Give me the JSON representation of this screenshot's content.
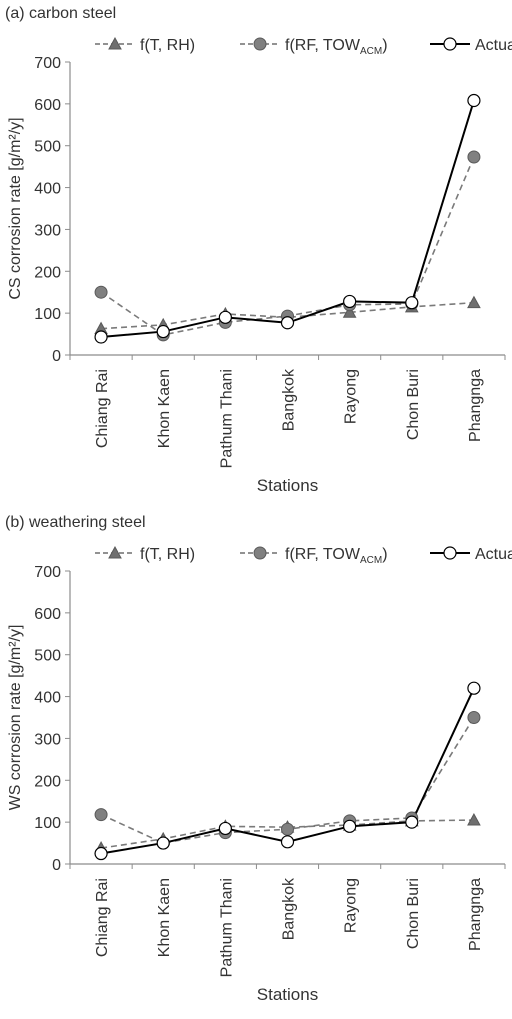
{
  "chart_data": [
    {
      "type": "line",
      "title": "(a) carbon steel",
      "xlabel": "Stations",
      "ylabel": "CS corrosion rate [g/m²/y]",
      "ylim": [
        0,
        700
      ],
      "yticks": [
        0,
        100,
        200,
        300,
        400,
        500,
        600,
        700
      ],
      "categories": [
        "Chiang Rai",
        "Khon Kaen",
        "Pathum Thani",
        "Bangkok",
        "Rayong",
        "Chon Buri",
        "Phangnga"
      ],
      "grid": false,
      "legend_position": "top",
      "series": [
        {
          "name": "f(T, RH)",
          "legend_main": "f(T, RH)",
          "legend_sub": "",
          "legend_tail": "",
          "marker": "triangle",
          "line": "dashed",
          "color": "#7f7f7f",
          "values": [
            63,
            72,
            98,
            90,
            102,
            115,
            125
          ]
        },
        {
          "name": "f(RF, TOWACM)",
          "legend_main": "f(RF, TOW",
          "legend_sub": "ACM",
          "legend_tail": ")",
          "marker": "circle-filled",
          "line": "dashed",
          "color": "#7f7f7f",
          "values": [
            150,
            48,
            78,
            93,
            120,
            122,
            473
          ]
        },
        {
          "name": "Actual",
          "legend_main": "Actual",
          "legend_sub": "",
          "legend_tail": "",
          "marker": "circle-open",
          "line": "solid",
          "color": "#000000",
          "values": [
            43,
            56,
            90,
            77,
            128,
            125,
            608
          ]
        }
      ]
    },
    {
      "type": "line",
      "title": "(b) weathering steel",
      "xlabel": "Stations",
      "ylabel": "WS corrosion rate [g/m²/y]",
      "ylim": [
        0,
        700
      ],
      "yticks": [
        0,
        100,
        200,
        300,
        400,
        500,
        600,
        700
      ],
      "categories": [
        "Chiang Rai",
        "Khon Kaen",
        "Pathum Thani",
        "Bangkok",
        "Rayong",
        "Chon Buri",
        "Phangnga"
      ],
      "grid": false,
      "legend_position": "top",
      "series": [
        {
          "name": "f(T, RH)",
          "legend_main": "f(T, RH)",
          "legend_sub": "",
          "legend_tail": "",
          "marker": "triangle",
          "line": "dashed",
          "color": "#7f7f7f",
          "values": [
            38,
            60,
            90,
            88,
            93,
            103,
            105
          ]
        },
        {
          "name": "f(RF, TOWACM)",
          "legend_main": "f(RF, TOW",
          "legend_sub": "ACM",
          "legend_tail": ")",
          "marker": "circle-filled",
          "line": "dashed",
          "color": "#7f7f7f",
          "values": [
            118,
            50,
            75,
            83,
            103,
            110,
            350
          ]
        },
        {
          "name": "Actual",
          "legend_main": "Actual",
          "legend_sub": "",
          "legend_tail": "",
          "marker": "circle-open",
          "line": "solid",
          "color": "#000000",
          "values": [
            25,
            50,
            85,
            53,
            90,
            100,
            420
          ]
        }
      ]
    }
  ]
}
